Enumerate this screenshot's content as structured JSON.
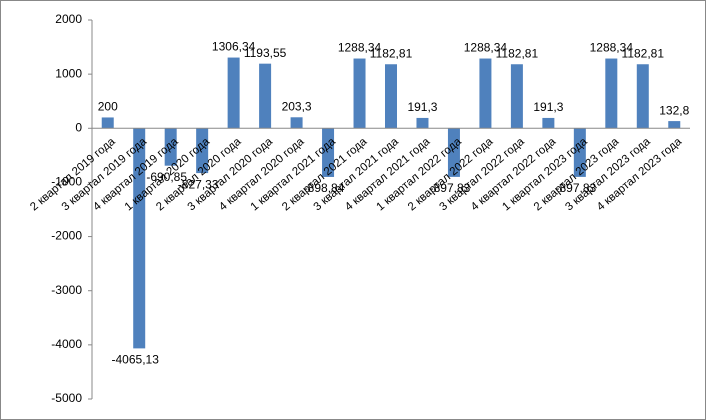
{
  "chart_data": {
    "type": "bar",
    "categories": [
      "2 квартал 2019 года",
      "3 квартал 2019 года",
      "4 квартал 2019 года",
      "1 квартал 2020 года",
      "2 квартал 2020 года",
      "3 квартал 2020 года",
      "4 квартал 2020 года",
      "1 квартал 2021 года",
      "2 квартал 2021 года",
      "3 квартал 2021 года",
      "4 квартал 2021 года",
      "1 квартал 2022 года",
      "2 квартал 2022 года",
      "3 квартал 2022 года",
      "4 квартал 2022 года",
      "1 квартал 2023 года",
      "2 квартал 2023 года",
      "3 квартал 2023 года",
      "4 квартал 2023 года"
    ],
    "values": [
      200,
      -4065.13,
      -690.85,
      -827.33,
      1306.34,
      1193.55,
      203.3,
      -898.84,
      1288.34,
      1182.81,
      191.3,
      -897.83,
      1288.34,
      1182.81,
      191.3,
      -897.83,
      1288.34,
      1182.81,
      132.8
    ],
    "value_labels": [
      "200",
      "-4065,13",
      "-690,85",
      "-827,33",
      "1306,34",
      "1193,55",
      "203,3",
      "-898,84",
      "1288,34",
      "1182,81",
      "191,3",
      "-897,83",
      "1288,34",
      "1182,81",
      "191,3",
      "-897,83",
      "1288,34",
      "1182,81",
      "132,8"
    ],
    "color": "#4f81bd",
    "ylim": [
      -5000,
      2000
    ],
    "yticks": [
      -5000,
      -4000,
      -3000,
      -2000,
      -1000,
      0,
      1000,
      2000
    ]
  }
}
